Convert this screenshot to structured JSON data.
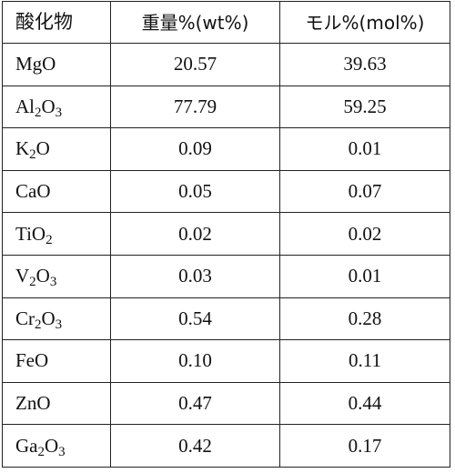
{
  "table": {
    "headers": {
      "oxide": "酸化物",
      "weight": "重量%(wt%)",
      "mol": "モル%(mol%)"
    },
    "rows": [
      {
        "oxide": [
          {
            "t": "MgO"
          }
        ],
        "weight": "20.57",
        "mol": "39.63"
      },
      {
        "oxide": [
          {
            "t": "Al"
          },
          {
            "s": "2"
          },
          {
            "t": "O"
          },
          {
            "s": "3"
          }
        ],
        "weight": "77.79",
        "mol": "59.25"
      },
      {
        "oxide": [
          {
            "t": "K"
          },
          {
            "s": "2"
          },
          {
            "t": "O"
          }
        ],
        "weight": "0.09",
        "mol": "0.01"
      },
      {
        "oxide": [
          {
            "t": "CaO"
          }
        ],
        "weight": "0.05",
        "mol": "0.07"
      },
      {
        "oxide": [
          {
            "t": "TiO"
          },
          {
            "s": "2"
          }
        ],
        "weight": "0.02",
        "mol": "0.02"
      },
      {
        "oxide": [
          {
            "t": "V"
          },
          {
            "s": "2"
          },
          {
            "t": "O"
          },
          {
            "s": "3"
          }
        ],
        "weight": "0.03",
        "mol": "0.01"
      },
      {
        "oxide": [
          {
            "t": "Cr"
          },
          {
            "s": "2"
          },
          {
            "t": "O"
          },
          {
            "s": "3"
          }
        ],
        "weight": "0.54",
        "mol": "0.28"
      },
      {
        "oxide": [
          {
            "t": "FeO"
          }
        ],
        "weight": "0.10",
        "mol": "0.11"
      },
      {
        "oxide": [
          {
            "t": "ZnO"
          }
        ],
        "weight": "0.47",
        "mol": "0.44"
      },
      {
        "oxide": [
          {
            "t": "Ga"
          },
          {
            "s": "2"
          },
          {
            "t": "O"
          },
          {
            "s": "3"
          }
        ],
        "weight": "0.42",
        "mol": "0.17"
      }
    ]
  }
}
